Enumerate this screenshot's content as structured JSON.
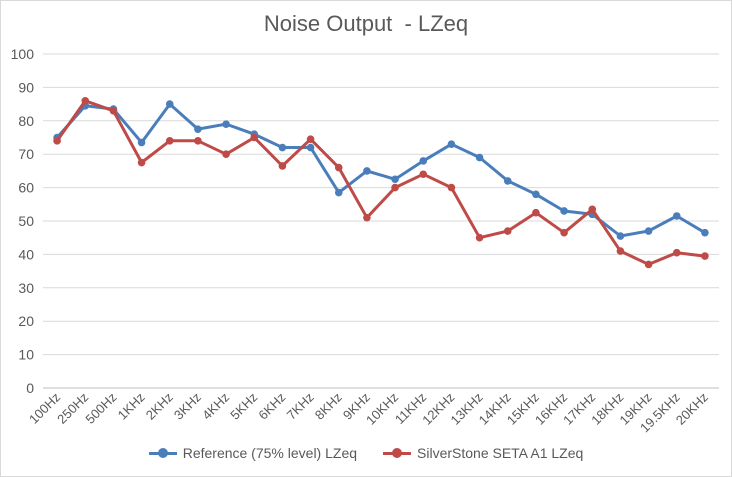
{
  "chart_data": {
    "type": "line",
    "title": "Noise Output  - LZeq",
    "xlabel": "",
    "ylabel": "",
    "ylim": [
      0,
      100
    ],
    "yticks": [
      0,
      10,
      20,
      30,
      40,
      50,
      60,
      70,
      80,
      90,
      100
    ],
    "grid": true,
    "legend_position": "bottom",
    "categories": [
      "100Hz",
      "250Hz",
      "500Hz",
      "1KHz",
      "2KHz",
      "3KHz",
      "4KHz",
      "5KHz",
      "6KHz",
      "7KHz",
      "8KHz",
      "9KHz",
      "10KHz",
      "11KHz",
      "12KHz",
      "13KHz",
      "14KHz",
      "15KHz",
      "16KHz",
      "17KHz",
      "18KHz",
      "19KHz",
      "19.5KHz",
      "20KHz"
    ],
    "series": [
      {
        "name": "Reference (75% level) LZeq",
        "color": "#4a7ebb",
        "values": [
          75,
          84.5,
          83.5,
          73.5,
          85,
          77.5,
          79,
          76,
          72,
          72,
          58.5,
          65,
          62.5,
          68,
          73,
          69,
          62,
          58,
          53,
          52,
          45.5,
          47,
          51.5,
          46.5
        ]
      },
      {
        "name": "SilverStone SETA A1 LZeq",
        "color": "#be4b48",
        "values": [
          74,
          86,
          83,
          67.5,
          74,
          74,
          70,
          75,
          66.5,
          74.5,
          66,
          51,
          60,
          64,
          60,
          45,
          47,
          52.5,
          46.5,
          53.5,
          41,
          37,
          40.5,
          39.5
        ]
      }
    ]
  }
}
